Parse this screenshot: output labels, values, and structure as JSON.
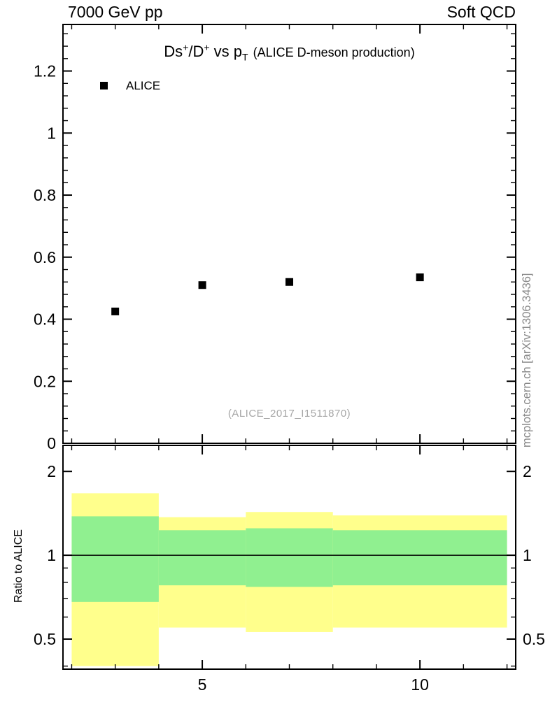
{
  "header": {
    "left": "7000 GeV pp",
    "right": "Soft QCD"
  },
  "main_plot": {
    "title": {
      "seg1": "Ds",
      "sup1": "+",
      "seg2": "/D",
      "sup2": "+",
      "seg3": " vs p",
      "sub": "T",
      "paren": "(ALICE D-meson production)"
    },
    "legend": {
      "label": "ALICE",
      "marker_color": "#000000"
    },
    "watermark": "(ALICE_2017_I1511870)"
  },
  "ratio_plot": {
    "ylabel": "Ratio to ALICE"
  },
  "side_text": "mcplots.cern.ch [arXiv:1306.3436]",
  "chart_data": [
    {
      "type": "scatter",
      "title": "Ds+/D+ vs pT (ALICE D-meson production)",
      "xlim": [
        1.8,
        12.2
      ],
      "ylim": [
        0,
        1.35
      ],
      "xticks": [
        5,
        10
      ],
      "yticks": [
        0,
        0.2,
        0.4,
        0.6,
        0.8,
        1,
        1.2
      ],
      "x_minor_step": 1,
      "y_minor_step": 0.04,
      "grid": false,
      "legend_position": "top-left-inside",
      "series": [
        {
          "name": "ALICE",
          "marker": "filled-square",
          "color": "#000000",
          "x": [
            3,
            5,
            7,
            10
          ],
          "y": [
            0.425,
            0.51,
            0.52,
            0.535
          ]
        }
      ]
    },
    {
      "type": "band-ratio",
      "ylabel": "Ratio to ALICE",
      "yscale": "log",
      "xlim": [
        1.8,
        12.2
      ],
      "ylim": [
        0.39,
        2.48
      ],
      "xticks": [
        5,
        10
      ],
      "yticks": [
        0.5,
        1,
        2
      ],
      "y_minor_ticks": [
        0.4,
        0.6,
        0.7,
        0.8,
        0.9
      ],
      "reference_line": 1,
      "band_colors": {
        "outer": "#ffff8c",
        "inner": "#90f090"
      },
      "bands": [
        {
          "x0": 2,
          "x1": 4,
          "outer_lo": 0.4,
          "outer_hi": 1.67,
          "inner_lo": 0.68,
          "inner_hi": 1.38
        },
        {
          "x0": 4,
          "x1": 6,
          "outer_lo": 0.55,
          "outer_hi": 1.37,
          "inner_lo": 0.78,
          "inner_hi": 1.23
        },
        {
          "x0": 6,
          "x1": 8,
          "outer_lo": 0.53,
          "outer_hi": 1.43,
          "inner_lo": 0.77,
          "inner_hi": 1.25
        },
        {
          "x0": 8,
          "x1": 12,
          "outer_lo": 0.55,
          "outer_hi": 1.39,
          "inner_lo": 0.78,
          "inner_hi": 1.23
        }
      ]
    }
  ]
}
